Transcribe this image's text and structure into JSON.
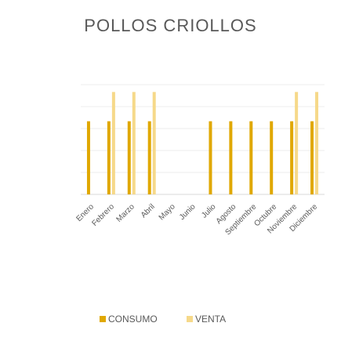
{
  "chart_data": {
    "type": "bar",
    "title": "POLLOS CRIOLLOS",
    "categories": [
      "Enero",
      "Febrero",
      "Marzo",
      "Abril",
      "Mayo",
      "Junio",
      "Julio",
      "Agosto",
      "Septiembre",
      "Octubre",
      "Noviembre",
      "Diciembre"
    ],
    "series": [
      {
        "name": "CONSUMO",
        "color": "#E0A800",
        "values": [
          5,
          5,
          5,
          5,
          0,
          0,
          5,
          5,
          5,
          5,
          5,
          5
        ]
      },
      {
        "name": "VENTA",
        "color": "#F6D98A",
        "values": [
          0,
          7,
          7,
          7,
          0,
          0,
          0,
          0,
          0,
          0,
          7,
          7
        ]
      }
    ],
    "ylim": [
      0,
      7.5
    ],
    "grid": true,
    "legend_position": "bottom"
  }
}
